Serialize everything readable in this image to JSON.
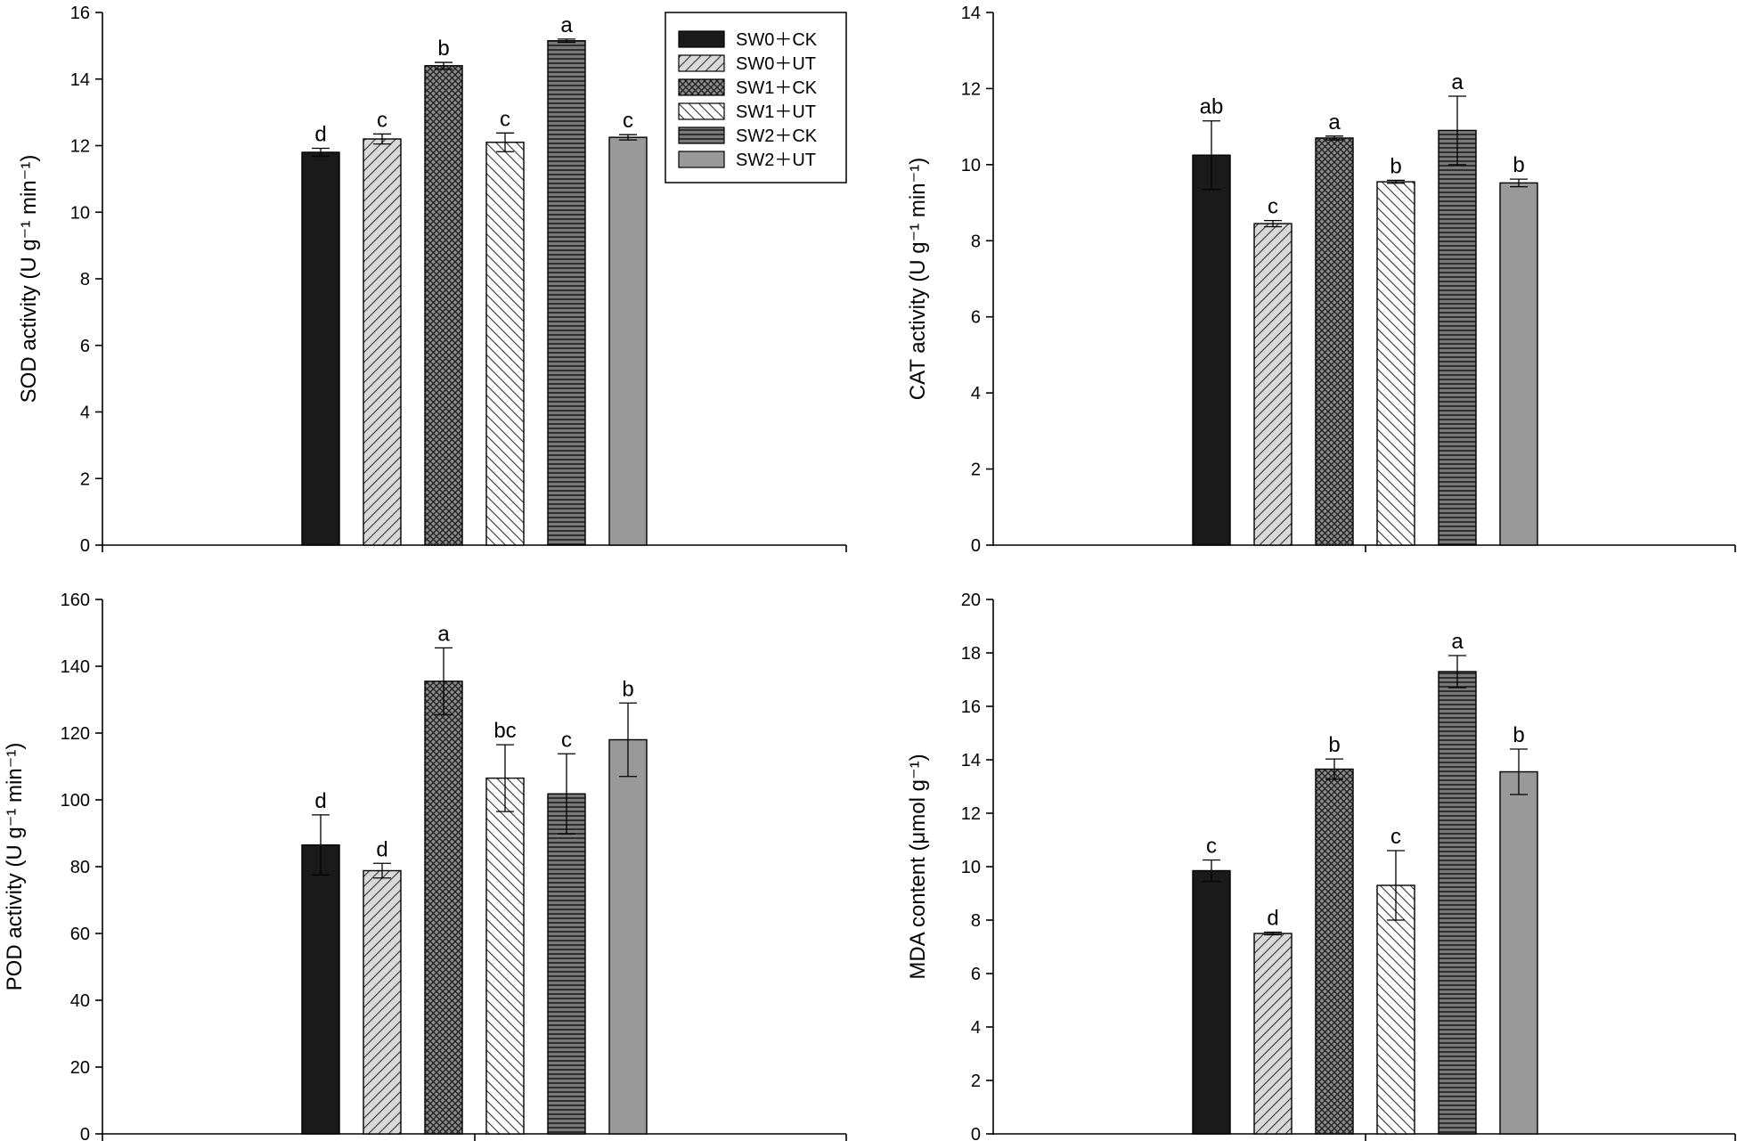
{
  "legend": [
    {
      "label": "SW0＋CK",
      "pattern": "solid-black"
    },
    {
      "label": "SW0＋UT",
      "pattern": "diag-light"
    },
    {
      "label": "SW1＋CK",
      "pattern": "crosshatch"
    },
    {
      "label": "SW1＋UT",
      "pattern": "diag-back"
    },
    {
      "label": "SW2＋CK",
      "pattern": "horizontal"
    },
    {
      "label": "SW2＋UT",
      "pattern": "solid-gray"
    }
  ],
  "chart_data": [
    {
      "type": "bar",
      "name": "SOD",
      "ylabel": "SOD activity (U g⁻¹ min⁻¹)",
      "ylim": [
        0,
        16
      ],
      "yticks": [
        0,
        2,
        4,
        6,
        8,
        10,
        12,
        14,
        16
      ],
      "categories": [
        "SW0＋CK",
        "SW0＋UT",
        "SW1＋CK",
        "SW1＋UT",
        "SW2＋CK",
        "SW2＋UT"
      ],
      "values": [
        11.8,
        12.2,
        14.4,
        12.1,
        15.15,
        12.25
      ],
      "errors": [
        0.12,
        0.15,
        0.1,
        0.28,
        0.05,
        0.08
      ],
      "letters": [
        "d",
        "c",
        "b",
        "c",
        "a",
        "c"
      ]
    },
    {
      "type": "bar",
      "name": "CAT",
      "ylabel": "CAT activity (U g⁻¹ min⁻¹)",
      "ylim": [
        0,
        14
      ],
      "yticks": [
        0,
        2,
        4,
        6,
        8,
        10,
        12,
        14
      ],
      "categories": [
        "SW0＋CK",
        "SW0＋UT",
        "SW1＋CK",
        "SW1＋UT",
        "SW2＋CK",
        "SW2＋UT"
      ],
      "values": [
        10.25,
        8.45,
        10.7,
        9.55,
        10.9,
        9.52
      ],
      "errors": [
        0.9,
        0.08,
        0.05,
        0.04,
        0.9,
        0.1
      ],
      "letters": [
        "ab",
        "c",
        "a",
        "b",
        "a",
        "b"
      ]
    },
    {
      "type": "bar",
      "name": "POD",
      "ylabel": "POD activity (U g⁻¹ min⁻¹)",
      "ylim": [
        0,
        160
      ],
      "yticks": [
        0,
        20,
        40,
        60,
        80,
        100,
        120,
        140,
        160
      ],
      "categories": [
        "SW0＋CK",
        "SW0＋UT",
        "SW1＋CK",
        "SW1＋UT",
        "SW2＋CK",
        "SW2＋UT"
      ],
      "values": [
        86.5,
        78.8,
        135.5,
        106.5,
        101.8,
        118
      ],
      "errors": [
        9,
        2.2,
        10,
        10,
        12,
        11
      ],
      "letters": [
        "d",
        "d",
        "a",
        "bc",
        "c",
        "b"
      ]
    },
    {
      "type": "bar",
      "name": "MDA",
      "ylabel": "MDA content (μmol g⁻¹)",
      "ylim": [
        0,
        20
      ],
      "yticks": [
        0,
        2,
        4,
        6,
        8,
        10,
        12,
        14,
        16,
        18,
        20
      ],
      "categories": [
        "SW0＋CK",
        "SW0＋UT",
        "SW1＋CK",
        "SW1＋UT",
        "SW2＋CK",
        "SW2＋UT"
      ],
      "values": [
        9.85,
        7.5,
        13.65,
        9.3,
        17.3,
        13.55
      ],
      "errors": [
        0.4,
        0.05,
        0.38,
        1.3,
        0.6,
        0.85
      ],
      "letters": [
        "c",
        "d",
        "b",
        "c",
        "a",
        "b"
      ]
    }
  ]
}
